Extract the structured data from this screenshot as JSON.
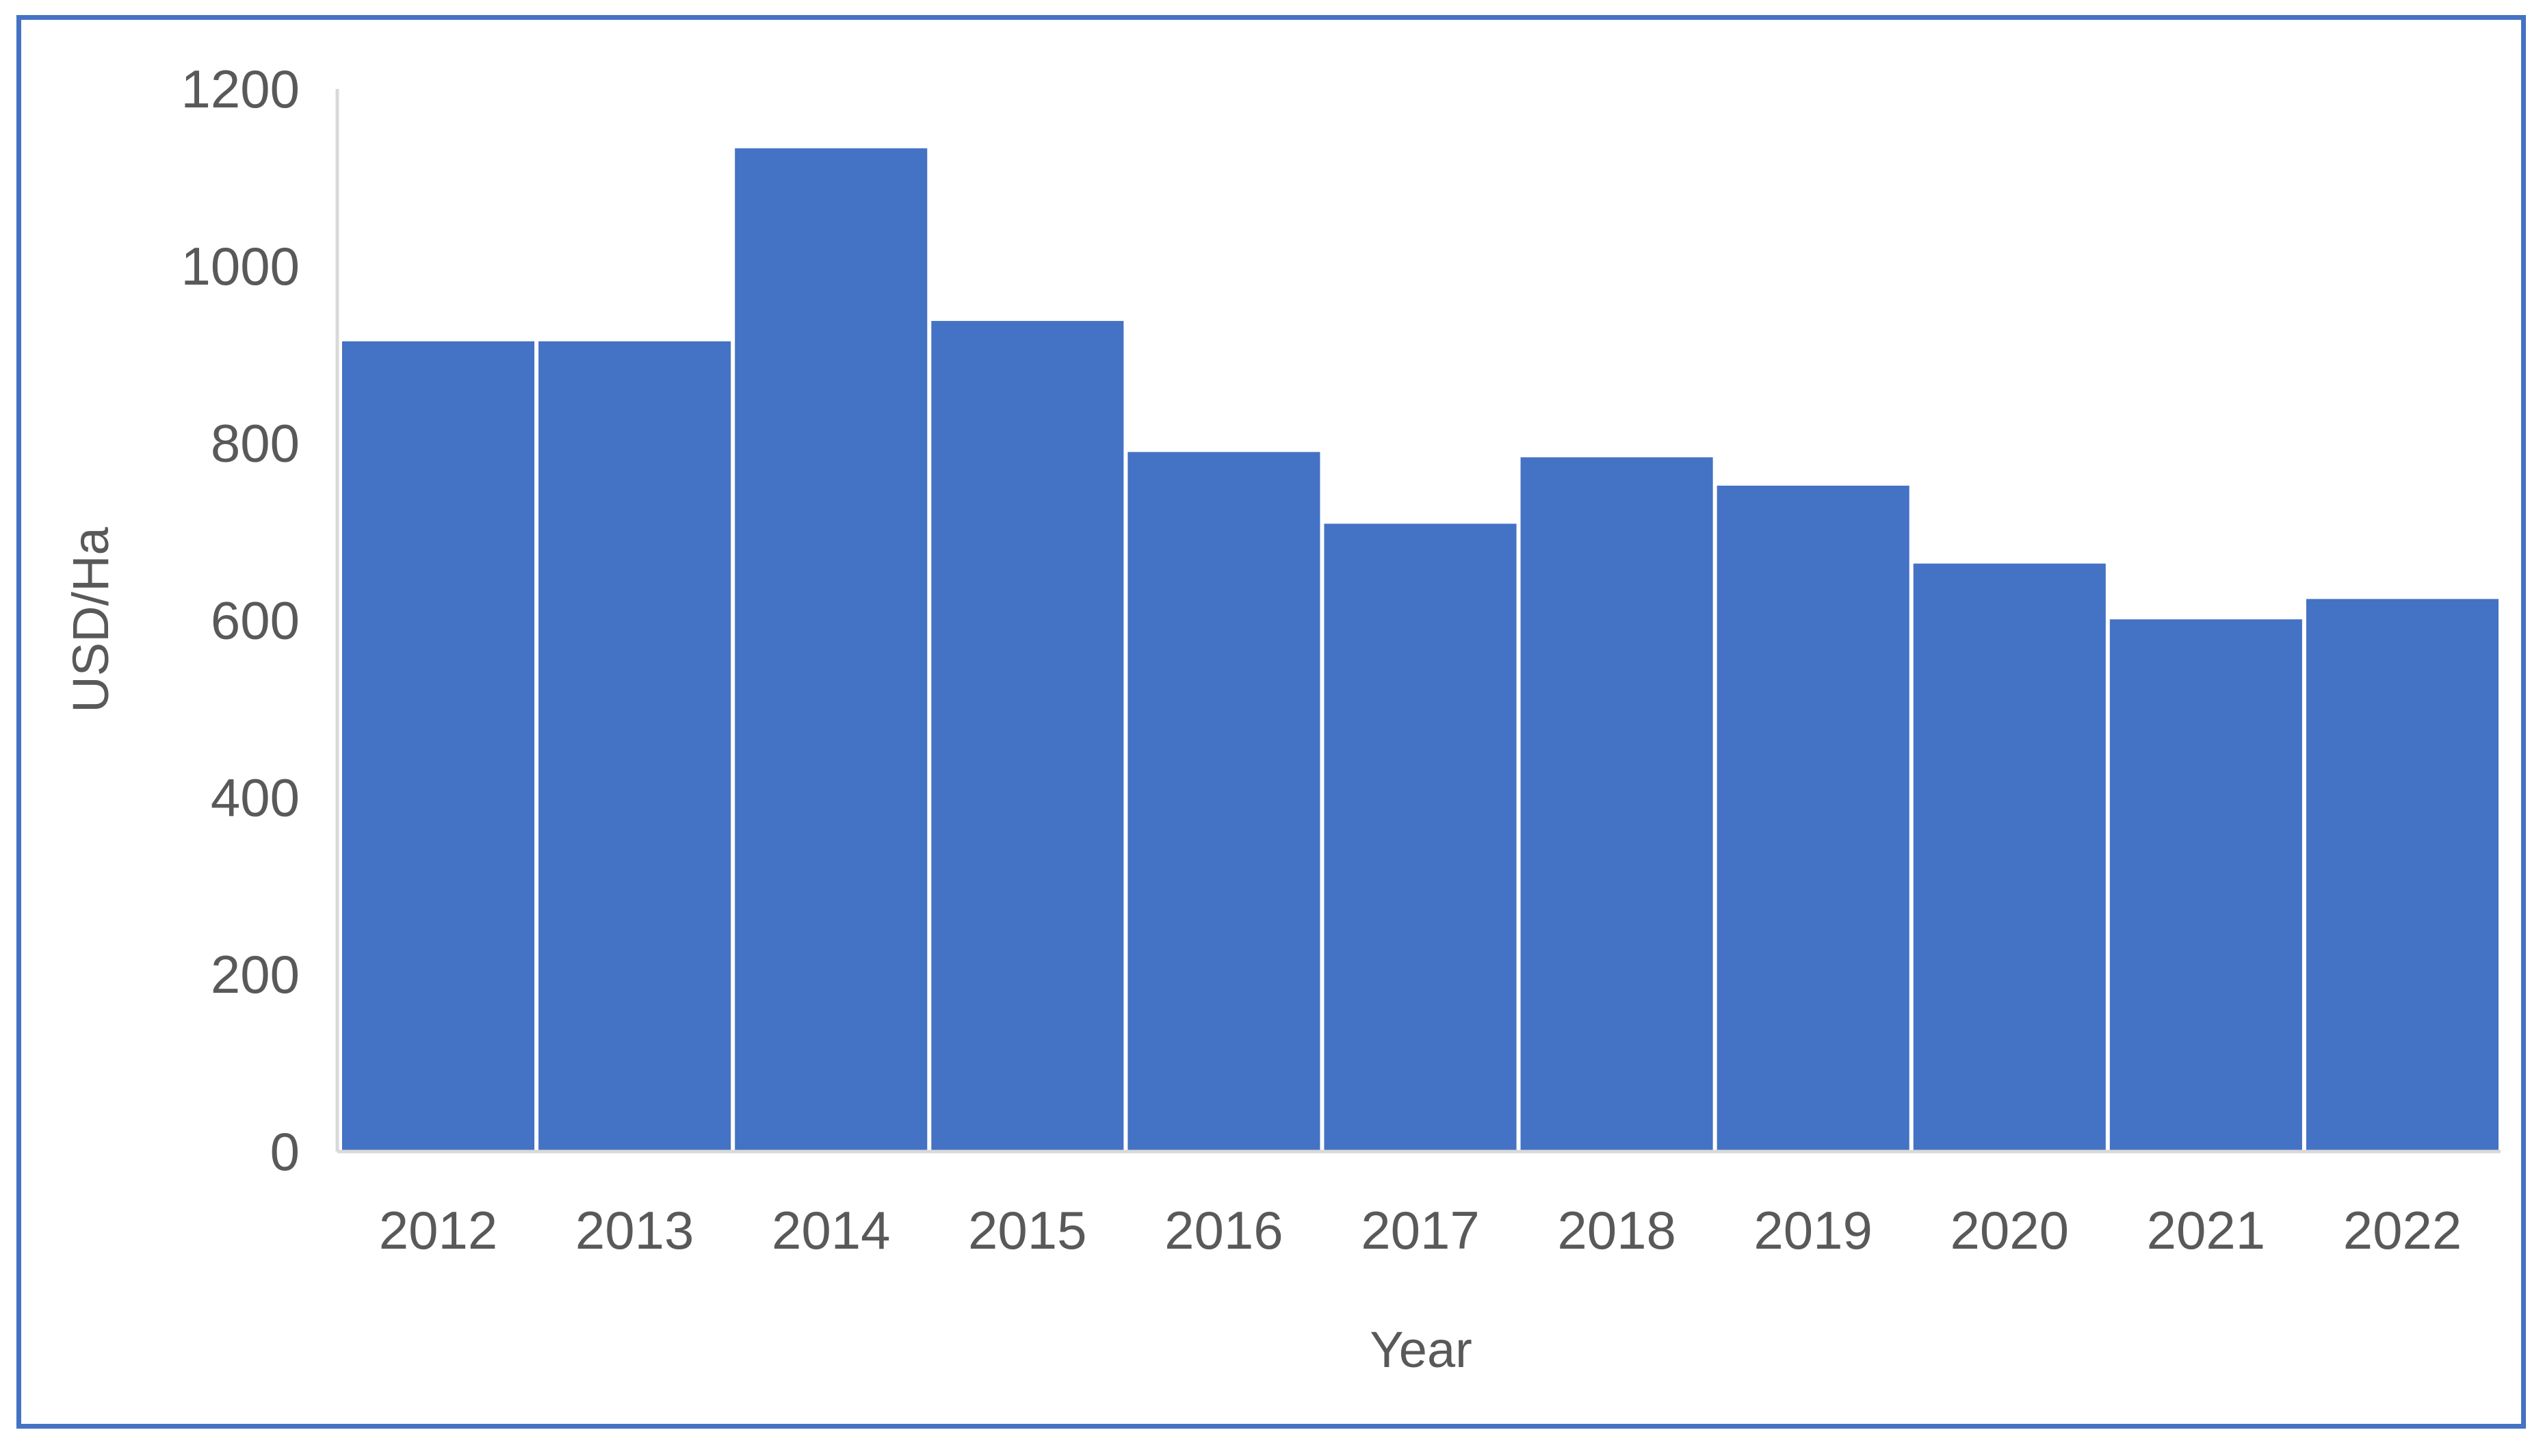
{
  "chart_data": {
    "type": "bar",
    "title": "",
    "xlabel": "Year",
    "ylabel": "USD/Ha",
    "categories": [
      "2012",
      "2013",
      "2014",
      "2015",
      "2016",
      "2017",
      "2018",
      "2019",
      "2020",
      "2021",
      "2022"
    ],
    "values": [
      915,
      915,
      1133,
      938,
      790,
      709,
      784,
      752,
      664,
      601,
      624
    ],
    "ylim": [
      0,
      1200
    ],
    "yticks": [
      "0",
      "200",
      "400",
      "600",
      "800",
      "1000",
      "1200"
    ],
    "grid": false,
    "legend": "none",
    "bar_color": "#4472C4",
    "frame_color": "#4472C4"
  }
}
